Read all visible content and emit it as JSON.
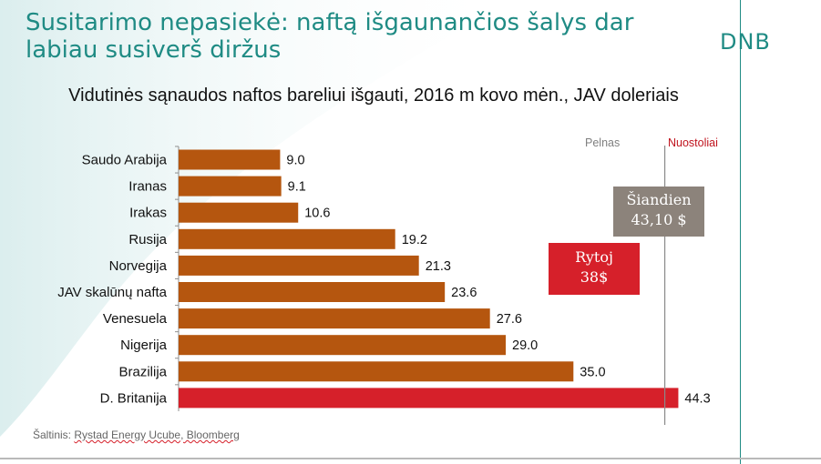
{
  "slide": {
    "title": "Susitarimo nepasiekė: naftą išgaunančios šalys dar labiau susiverš diržus",
    "logo": "DNB"
  },
  "colors": {
    "bar": "#b5560f",
    "bar_highlight": "#d6202a",
    "accent": "#1f8b84",
    "today_box": "#8c837b",
    "tomorrow_box": "#d6202a"
  },
  "chart_data": {
    "type": "bar",
    "orientation": "horizontal",
    "title": "Vidutinės sąnaudos naftos bareliui išgauti, 2016 m kovo mėn., JAV doleriais",
    "categories": [
      "Saudo Arabija",
      "Iranas",
      "Irakas",
      "Rusija",
      "Norvegija",
      "JAV skalūnų nafta",
      "Venesuela",
      "Nigerija",
      "Brazilija",
      "D. Britanija"
    ],
    "values": [
      9.0,
      9.1,
      10.6,
      19.2,
      21.3,
      23.6,
      27.6,
      29.0,
      35.0,
      44.3
    ],
    "value_labels": [
      "9.0",
      "9.1",
      "10.6",
      "19.2",
      "21.3",
      "23.6",
      "27.6",
      "29.0",
      "35.0",
      "44.3"
    ],
    "highlight_index": 9,
    "xlim": [
      0,
      44.3
    ],
    "grid": false,
    "reference_line": {
      "value": 43.1,
      "left_label": "Pelnas",
      "right_label": "Nuostoliai"
    },
    "annotations": {
      "today": {
        "line1": "Šiandien",
        "line2": "43,10 $"
      },
      "tomorrow": {
        "line1": "Rytoj",
        "line2": "38$"
      }
    }
  },
  "source": {
    "prefix": "Šaltinis: ",
    "text": "Rystad Energy Ucube, Bloomberg"
  }
}
